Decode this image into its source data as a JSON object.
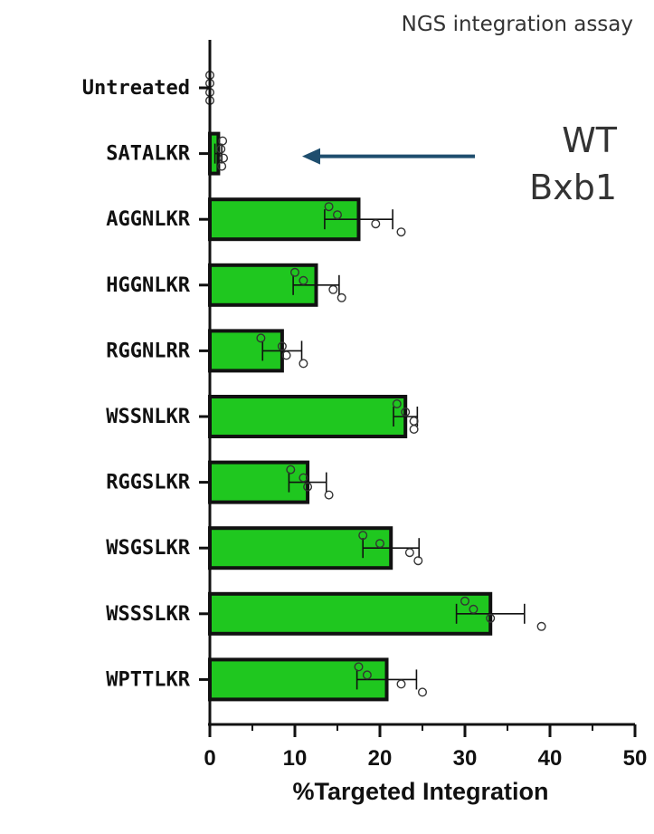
{
  "chart_data": {
    "type": "bar",
    "orientation": "horizontal",
    "title": "NGS integration assay",
    "xlabel": "%Targeted Integration",
    "ylabel": "",
    "xlim": [
      0,
      50
    ],
    "xticks": [
      0,
      10,
      20,
      30,
      40,
      50
    ],
    "grid": false,
    "bar_color": "#1fc71f",
    "bar_edge_color": "#111111",
    "annotation": {
      "lines": [
        "WT",
        "Bxb1"
      ],
      "points_to": "SATALKR",
      "arrow_color": "#1f4e6e"
    },
    "categories": [
      "Untreated",
      "SATALKR",
      "AGGNLKR",
      "HGGNLKR",
      "RGGNLRR",
      "WSSNLKR",
      "RGGSLKR",
      "WSGSLKR",
      "WSSSLKR",
      "WPTTLKR"
    ],
    "values": [
      0,
      1.0,
      17.5,
      12.5,
      8.5,
      23.0,
      11.5,
      21.3,
      33.0,
      20.8
    ],
    "error": [
      0,
      0.4,
      4.0,
      2.7,
      2.3,
      1.4,
      2.2,
      3.3,
      4.0,
      3.5
    ],
    "points": [
      [
        0,
        0,
        0,
        0
      ],
      [
        1.5,
        1.3,
        1.6,
        1.4
      ],
      [
        14.0,
        15.0,
        19.5,
        22.5
      ],
      [
        10.0,
        11.0,
        14.5,
        15.5
      ],
      [
        6.0,
        8.5,
        9.0,
        11.0
      ],
      [
        22.0,
        23.0,
        24.0,
        24.0
      ],
      [
        9.5,
        11.0,
        11.5,
        14.0
      ],
      [
        18.0,
        20.0,
        23.5,
        24.5
      ],
      [
        30.0,
        31.0,
        33.0,
        39.0
      ],
      [
        17.5,
        18.5,
        22.5,
        25.0
      ]
    ]
  }
}
